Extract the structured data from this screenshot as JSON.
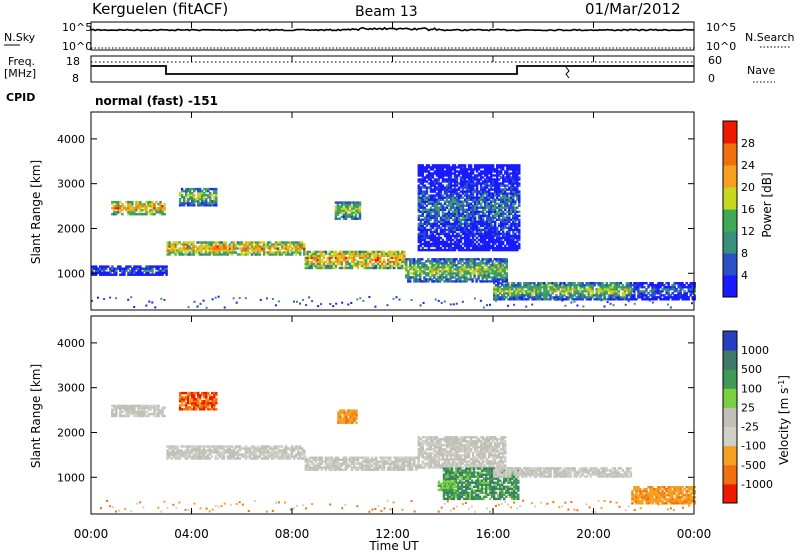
{
  "header": {
    "station": "Kerguelen (fitACF)",
    "beam": "Beam 13",
    "date": "01/Mar/2012"
  },
  "noise_panel": {
    "left_label": "N.Sky",
    "left_ticks": [
      "10^5",
      "10^0"
    ],
    "right_ticks": [
      "10^5",
      "10^0"
    ],
    "right_label": "N.Search"
  },
  "freq_panel": {
    "label_top": "Freq.",
    "label_unit": "[MHz]",
    "left_ticks": [
      "18",
      "8"
    ],
    "right_ticks": [
      "60",
      "0"
    ],
    "right_label": "Nave",
    "cpid_label": "CPID",
    "cpid_text": "normal (fast) -151"
  },
  "chart_data": [
    {
      "type": "heatmap",
      "name": "power",
      "ylabel": "Slant Range [km]",
      "yticks": [
        "1000",
        "2000",
        "3000",
        "4000"
      ],
      "ylim": [
        180,
        4600
      ],
      "xlim": [
        0,
        24
      ],
      "colorbar": {
        "label": "Power [dB]",
        "ticks": [
          "4",
          "8",
          "12",
          "16",
          "20",
          "24",
          "28"
        ],
        "colors": [
          "#1a1aff",
          "#2a50c8",
          "#3a8f7a",
          "#3faa55",
          "#c8d820",
          "#f5a020",
          "#f07010",
          "#ee1a00"
        ]
      },
      "echo_bands": [
        {
          "t0": 0.0,
          "t1": 3.0,
          "r0": 950,
          "r1": 1150,
          "level": "low"
        },
        {
          "t0": 0.8,
          "t1": 2.9,
          "r0": 2300,
          "r1": 2600,
          "level": "high"
        },
        {
          "t0": 3.0,
          "t1": 8.5,
          "r0": 1400,
          "r1": 1700,
          "level": "high"
        },
        {
          "t0": 8.5,
          "t1": 12.5,
          "r0": 1100,
          "r1": 1500,
          "level": "high"
        },
        {
          "t0": 12.5,
          "t1": 16.5,
          "r0": 800,
          "r1": 1300,
          "level": "mid"
        },
        {
          "t0": 16.0,
          "t1": 21.5,
          "r0": 400,
          "r1": 800,
          "level": "mid"
        },
        {
          "t0": 3.5,
          "t1": 5.0,
          "r0": 2500,
          "r1": 2900,
          "level": "mid"
        },
        {
          "t0": 9.7,
          "t1": 10.7,
          "r0": 2200,
          "r1": 2600,
          "level": "mid"
        },
        {
          "t0": 13.0,
          "t1": 17.0,
          "r0": 1500,
          "r1": 3400,
          "level": "low"
        },
        {
          "t0": 21.5,
          "t1": 24.0,
          "r0": 400,
          "r1": 800,
          "level": "low"
        }
      ]
    },
    {
      "type": "heatmap",
      "name": "velocity",
      "ylabel": "Slant Range [km]",
      "yticks": [
        "1000",
        "2000",
        "3000",
        "4000"
      ],
      "ylim": [
        180,
        4600
      ],
      "xlim": [
        0,
        24
      ],
      "colorbar": {
        "label": "Velocity [m s",
        "label_exp": "-1",
        "ticks": [
          "1000",
          "500",
          "100",
          "25",
          "-25",
          "-100",
          "-500",
          "-1000"
        ],
        "colors": [
          "#2a3fc0",
          "#3d7a6a",
          "#3f9a55",
          "#7ad040",
          "#c0c0b8",
          "#d0d0c8",
          "#f5a020",
          "#f07010",
          "#ee1a00"
        ]
      },
      "echo_bands": [
        {
          "t0": 0.8,
          "t1": 2.9,
          "r0": 2350,
          "r1": 2600,
          "level": "gray"
        },
        {
          "t0": 3.0,
          "t1": 8.5,
          "r0": 1400,
          "r1": 1700,
          "level": "gray"
        },
        {
          "t0": 8.5,
          "t1": 13.0,
          "r0": 1150,
          "r1": 1450,
          "level": "gray"
        },
        {
          "t0": 13.0,
          "t1": 16.5,
          "r0": 1200,
          "r1": 1900,
          "level": "gray"
        },
        {
          "t0": 3.5,
          "t1": 5.0,
          "r0": 2500,
          "r1": 2900,
          "level": "neg"
        },
        {
          "t0": 9.8,
          "t1": 10.6,
          "r0": 2200,
          "r1": 2500,
          "level": "negmid"
        },
        {
          "t0": 14.0,
          "t1": 17.0,
          "r0": 500,
          "r1": 1200,
          "level": "pos"
        },
        {
          "t0": 13.8,
          "t1": 14.5,
          "r0": 700,
          "r1": 900,
          "level": "poslight"
        },
        {
          "t0": 16.0,
          "t1": 21.5,
          "r0": 1000,
          "r1": 1200,
          "level": "gray"
        },
        {
          "t0": 21.5,
          "t1": 24.0,
          "r0": 400,
          "r1": 800,
          "level": "negmid"
        }
      ]
    }
  ],
  "time_axis": {
    "ticks": [
      "00:00",
      "04:00",
      "08:00",
      "12:00",
      "16:00",
      "20:00",
      "00:00"
    ],
    "label": "Time UT"
  }
}
